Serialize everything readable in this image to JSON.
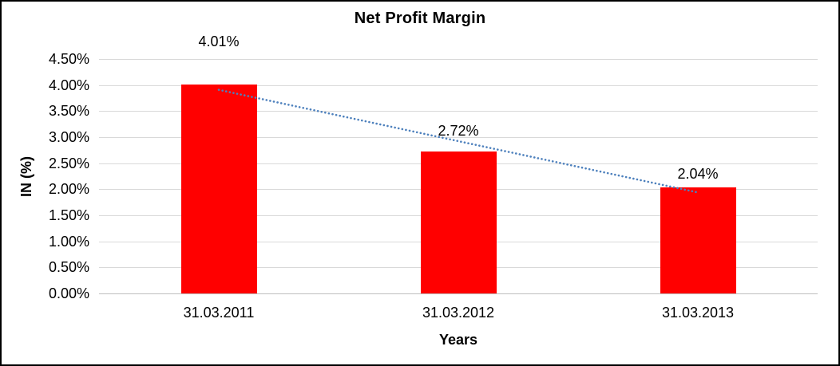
{
  "chart_data": {
    "type": "bar",
    "title": "Net Profit Margin",
    "xlabel": "Years",
    "ylabel": "IN (%)",
    "categories": [
      "31.03.2011",
      "31.03.2012",
      "31.03.2013"
    ],
    "values": [
      4.01,
      2.72,
      2.04
    ],
    "data_labels": [
      "4.01%",
      "2.72%",
      "2.04%"
    ],
    "y_tick_labels": [
      "4.50%",
      "4.00%",
      "3.50%",
      "3.00%",
      "2.50%",
      "2.00%",
      "1.50%",
      "1.00%",
      "0.50%",
      "0.00%"
    ],
    "ylim": [
      0,
      4.5
    ],
    "y_tick_step": 0.5,
    "grid": true,
    "legend": "none",
    "bar_color": "#FF0000",
    "gridline_color": "#d9d9d9",
    "trendline": {
      "type": "linear",
      "style": "dotted",
      "color": "#4E81BD"
    }
  }
}
